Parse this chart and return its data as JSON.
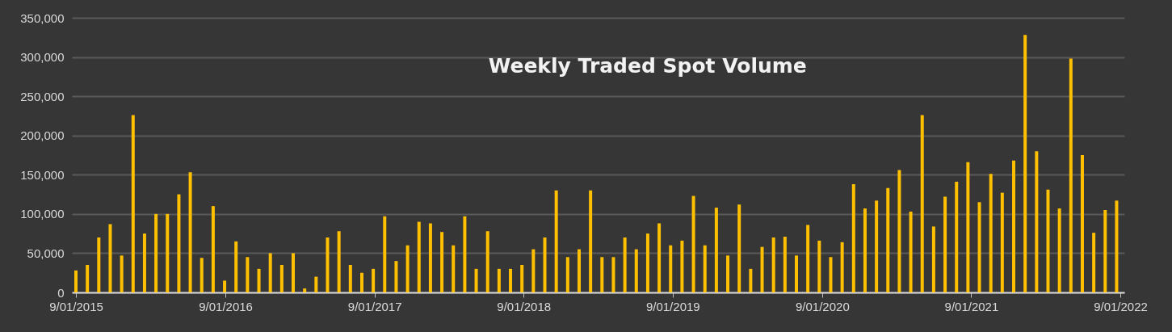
{
  "chart_data": {
    "type": "bar",
    "title": "Weekly Traded Spot Volume",
    "x": [
      "2015-09-01",
      "2015-09-29",
      "2015-10-27",
      "2015-11-24",
      "2015-12-22",
      "2016-01-19",
      "2016-02-16",
      "2016-03-15",
      "2016-04-12",
      "2016-05-10",
      "2016-06-07",
      "2016-07-05",
      "2016-08-02",
      "2016-08-30",
      "2016-09-27",
      "2016-10-25",
      "2016-11-22",
      "2016-12-20",
      "2017-01-17",
      "2017-02-14",
      "2017-03-14",
      "2017-04-11",
      "2017-05-09",
      "2017-06-06",
      "2017-07-04",
      "2017-08-01",
      "2017-08-29",
      "2017-09-26",
      "2017-10-24",
      "2017-11-21",
      "2017-12-19",
      "2018-01-16",
      "2018-02-13",
      "2018-03-13",
      "2018-04-10",
      "2018-05-08",
      "2018-06-05",
      "2018-07-03",
      "2018-07-31",
      "2018-08-28",
      "2018-09-25",
      "2018-10-23",
      "2018-11-20",
      "2018-12-18",
      "2019-01-15",
      "2019-02-12",
      "2019-03-12",
      "2019-04-09",
      "2019-05-07",
      "2019-06-04",
      "2019-07-02",
      "2019-07-30",
      "2019-08-27",
      "2019-09-24",
      "2019-10-22",
      "2019-11-19",
      "2019-12-17",
      "2020-01-14",
      "2020-02-11",
      "2020-03-10",
      "2020-04-07",
      "2020-05-05",
      "2020-06-02",
      "2020-06-30",
      "2020-07-28",
      "2020-08-25",
      "2020-09-22",
      "2020-10-20",
      "2020-11-17",
      "2020-12-15",
      "2021-01-12",
      "2021-02-09",
      "2021-03-09",
      "2021-04-06",
      "2021-05-04",
      "2021-06-01",
      "2021-06-29",
      "2021-07-27",
      "2021-08-24",
      "2021-09-21",
      "2021-10-19",
      "2021-11-16",
      "2021-12-14",
      "2022-01-11",
      "2022-02-08",
      "2022-03-08",
      "2022-04-05",
      "2022-05-03",
      "2022-05-31",
      "2022-06-28",
      "2022-07-26",
      "2022-08-23"
    ],
    "series": [
      {
        "color": "#ffc000",
        "values": [
          28000,
          35000,
          70000,
          87000,
          47000,
          226000,
          75000,
          100000,
          100000,
          125000,
          153000,
          44000,
          110000,
          15000,
          65000,
          45000,
          30000,
          50000,
          35000,
          50000,
          5000,
          20000,
          70000,
          78000,
          35000,
          25000,
          30000,
          97000,
          40000,
          60000,
          90000,
          88000,
          77000,
          60000,
          97000,
          30000,
          78000,
          30000,
          30000,
          35000,
          55000,
          70000,
          130000,
          45000,
          55000,
          130000,
          45000,
          45000,
          70000,
          55000,
          75000,
          88000,
          60000,
          66000,
          123000,
          60000,
          108000,
          47000,
          112000,
          30000,
          58000,
          70000,
          71000,
          47000,
          86000,
          66000,
          45000,
          64000,
          138000,
          107000,
          117000,
          133000,
          156000,
          103000,
          226000,
          84000,
          122000,
          141000,
          166000,
          115000,
          151000,
          127000,
          168000,
          328000,
          180000,
          131000,
          107000,
          298000,
          175000,
          76000,
          105000,
          117000
        ]
      }
    ],
    "xlim": [
      "2015-09-01",
      "2022-09-01"
    ],
    "xticks": [
      {
        "value": "2015-09-01",
        "label": "9/01/2015"
      },
      {
        "value": "2016-09-01",
        "label": "9/01/2016"
      },
      {
        "value": "2017-09-01",
        "label": "9/01/2017"
      },
      {
        "value": "2018-09-01",
        "label": "9/01/2018"
      },
      {
        "value": "2019-09-01",
        "label": "9/01/2019"
      },
      {
        "value": "2020-09-01",
        "label": "9/01/2020"
      },
      {
        "value": "2021-09-01",
        "label": "9/01/2021"
      },
      {
        "value": "2022-09-01",
        "label": "9/01/2022"
      }
    ],
    "ylim": [
      0,
      350000
    ],
    "yticks": [
      {
        "value": 0,
        "label": "0"
      },
      {
        "value": 50000,
        "label": "50,000"
      },
      {
        "value": 100000,
        "label": "100,000"
      },
      {
        "value": 150000,
        "label": "150,000"
      },
      {
        "value": 200000,
        "label": "200,000"
      },
      {
        "value": 250000,
        "label": "250,000"
      },
      {
        "value": 300000,
        "label": "300,000"
      },
      {
        "value": 350000,
        "label": "350,000"
      }
    ],
    "grid": "y",
    "legend": false
  }
}
